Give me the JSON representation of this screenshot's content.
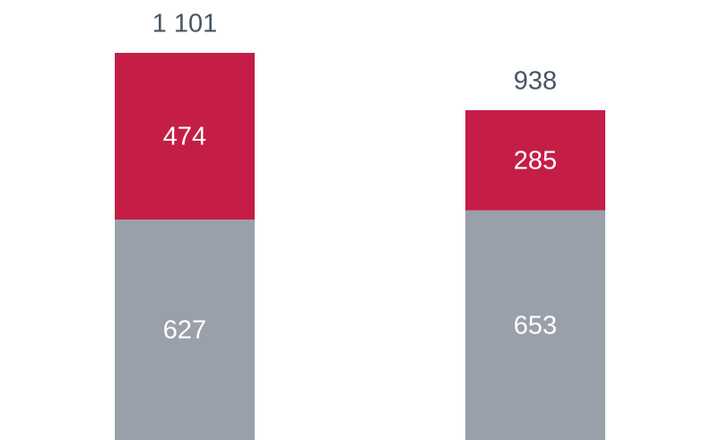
{
  "chart_data": {
    "type": "stacked_bar",
    "categories": [
      null,
      null
    ],
    "series": [
      {
        "color": "#9aa0aa",
        "values": [
          627,
          653
        ]
      },
      {
        "color": "#c41e47",
        "values": [
          474,
          285
        ]
      }
    ],
    "totals": [
      1101,
      938
    ],
    "total_labels": [
      "1 101",
      "938"
    ],
    "ylim": [
      0,
      1101
    ],
    "grid": false
  }
}
